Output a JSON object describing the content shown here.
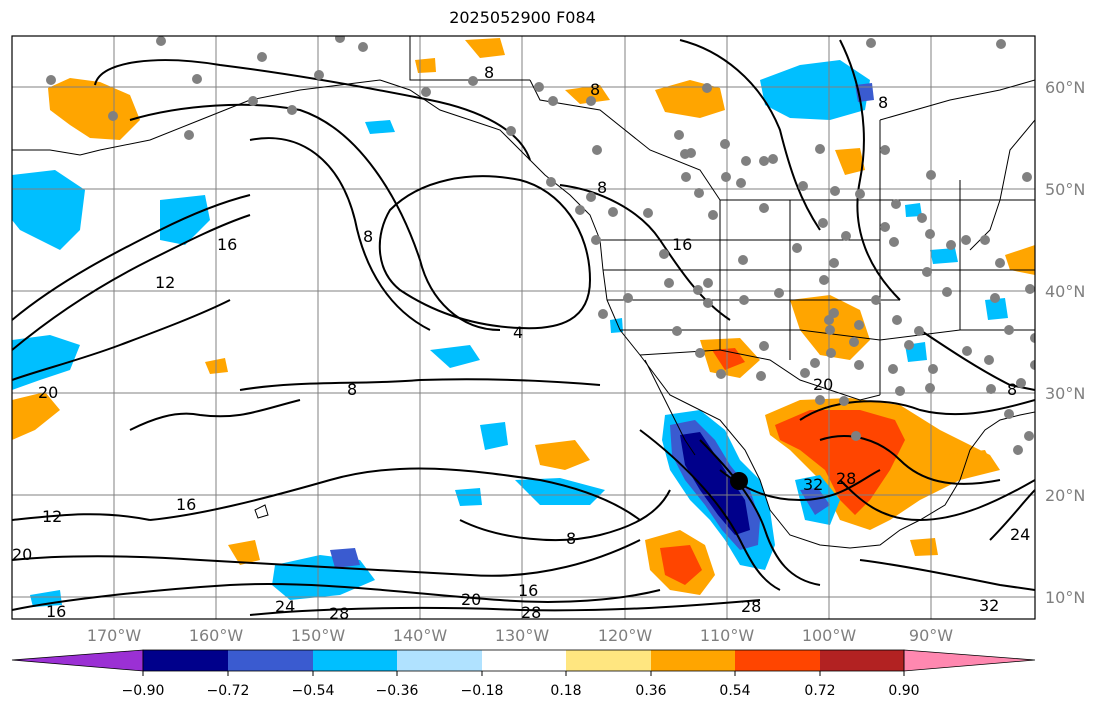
{
  "title": "2025052900 F084",
  "lat_labels": [
    "60°N",
    "50°N",
    "40°N",
    "30°N",
    "20°N",
    "10°N"
  ],
  "lon_labels": [
    "170°W",
    "160°W",
    "150°W",
    "140°W",
    "130°W",
    "120°W",
    "110°W",
    "100°W",
    "90°W"
  ],
  "contour_labels": [
    "8",
    "8",
    "8",
    "8",
    "8",
    "4",
    "8",
    "12",
    "16",
    "16",
    "20",
    "12",
    "16",
    "20",
    "16",
    "24",
    "28",
    "20",
    "16",
    "28",
    "8",
    "28",
    "20",
    "32",
    "28",
    "32",
    "24",
    "8"
  ],
  "colorbar": {
    "ticks": [
      "−0.90",
      "−0.72",
      "−0.54",
      "−0.36",
      "−0.18",
      "0.18",
      "0.36",
      "0.54",
      "0.72",
      "0.90"
    ],
    "colors": [
      "#9b30d4",
      "#00008b",
      "#3a5bd0",
      "#00bfff",
      "#b0e2ff",
      "#ffffff",
      "#ffe680",
      "#ffa500",
      "#ff4500",
      "#b22222",
      "#ff88b0"
    ]
  },
  "colors": {
    "land_outline": "#000000",
    "grid": "#808080",
    "station_marker": "#808080",
    "storm_marker": "#000000"
  }
}
